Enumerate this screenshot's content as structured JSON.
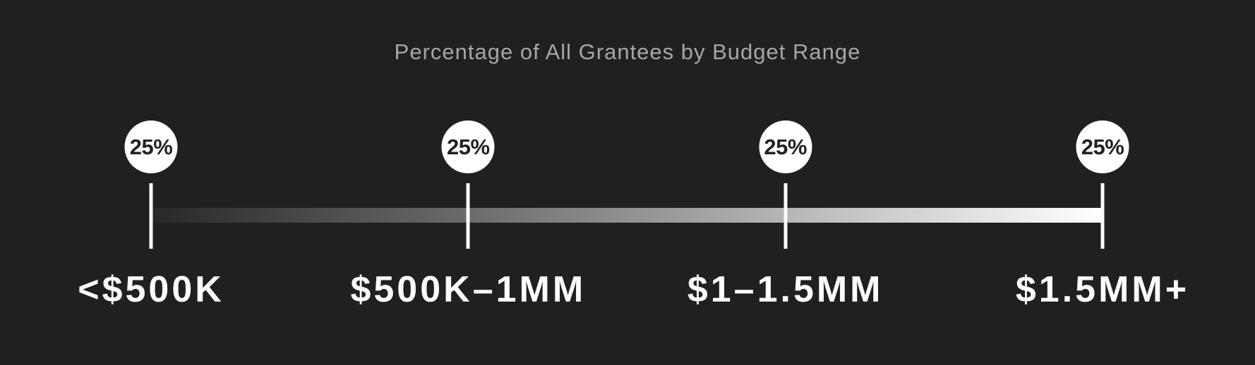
{
  "page": {
    "background_color": "#211f20"
  },
  "chart_data": {
    "type": "line",
    "variant": "horizontal-axis-percentage-markers",
    "title": "Percentage of All Grantees by Budget Range",
    "categories": [
      "<$500K",
      "$500K–1MM",
      "$1–1.5MM",
      "$1.5MM+"
    ],
    "values": [
      25,
      25,
      25,
      25
    ],
    "value_labels": [
      "25%",
      "25%",
      "25%",
      "25%"
    ],
    "legend": "none",
    "grid": "off",
    "axis": {
      "style": "horizontal gradient bar, dark on left to white on right, tick at each category",
      "gradient_start": "#292728",
      "gradient_end": "#ffffff",
      "tick_color": "#fafafa"
    },
    "marker_style": {
      "shape": "circle",
      "fill": "#ffffff",
      "text_color": "#242122"
    },
    "title_color": "#a8a5a6",
    "label_color": "#fcfcfc"
  }
}
